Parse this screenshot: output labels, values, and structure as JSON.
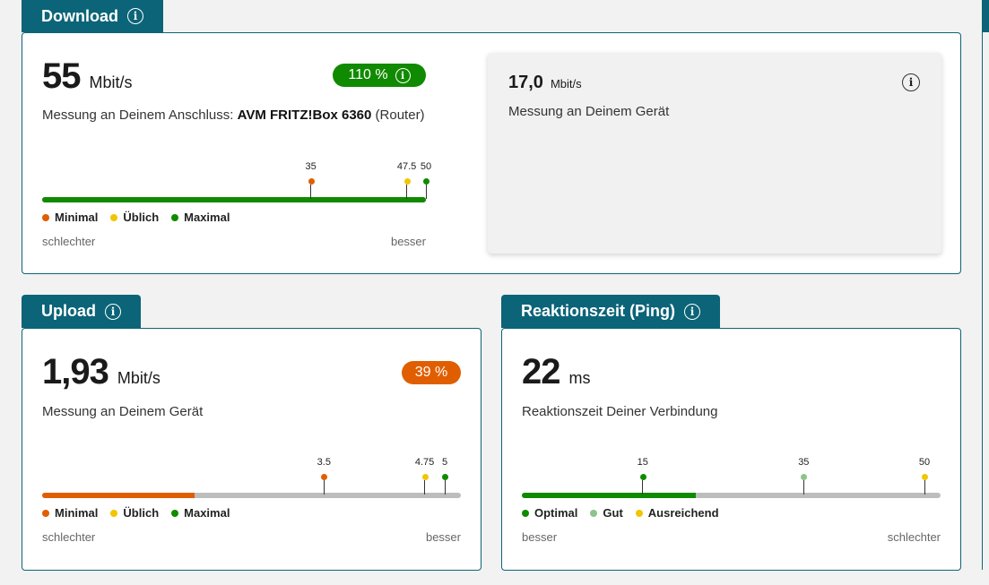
{
  "download": {
    "title": "Download",
    "value": "55",
    "unit": "Mbit/s",
    "badge": "110 %",
    "desc_prefix": "Messung an Deinem Anschluss: ",
    "desc_device": "AVM FRITZ!Box 6360",
    "desc_suffix": " (Router)",
    "progress_percent": 100,
    "markers": [
      {
        "label": "35",
        "value": 35,
        "color": "#e05e00"
      },
      {
        "label": "47.5",
        "value": 47.5,
        "color": "#f2c500"
      },
      {
        "label": "50",
        "value": 50,
        "color": "#108a00"
      }
    ],
    "legend": [
      "Minimal",
      "Üblich",
      "Maximal"
    ],
    "left_end": "schlechter",
    "right_end": "besser",
    "device_value": "17,0",
    "device_unit": "Mbit/s",
    "device_desc": "Messung an Deinem Gerät"
  },
  "upload": {
    "title": "Upload",
    "value": "1,93",
    "unit": "Mbit/s",
    "badge": "39 %",
    "desc": "Messung an Deinem Gerät",
    "progress_percent": 36.5,
    "markers": [
      {
        "label": "3.5",
        "value": 3.5,
        "color": "#e05e00"
      },
      {
        "label": "4.75",
        "value": 4.75,
        "color": "#f2c500"
      },
      {
        "label": "5",
        "value": 5,
        "color": "#108a00"
      }
    ],
    "legend": [
      "Minimal",
      "Üblich",
      "Maximal"
    ],
    "left_end": "schlechter",
    "right_end": "besser"
  },
  "ping": {
    "title": "Reaktionszeit (Ping)",
    "value": "22",
    "unit": "ms",
    "desc": "Reaktionszeit Deiner Verbindung",
    "progress_percent": 41.5,
    "markers": [
      {
        "label": "15",
        "value": 15,
        "color": "#108a00"
      },
      {
        "label": "35",
        "value": 35,
        "color": "#8cc48a"
      },
      {
        "label": "50",
        "value": 50,
        "color": "#f2c500"
      }
    ],
    "legend": [
      "Optimal",
      "Gut",
      "Ausreichend"
    ],
    "left_end": "besser",
    "right_end": "schlechter"
  },
  "colors": {
    "teal": "#0c6478",
    "green": "#108a00",
    "orange": "#e05e00",
    "yellow": "#f2c500",
    "lightgreen": "#8cc48a"
  },
  "info_glyph": "i"
}
